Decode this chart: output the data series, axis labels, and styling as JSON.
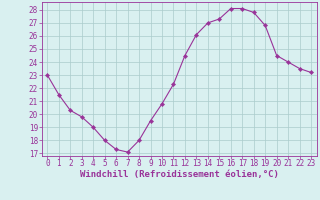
{
  "x": [
    0,
    1,
    2,
    3,
    4,
    5,
    6,
    7,
    8,
    9,
    10,
    11,
    12,
    13,
    14,
    15,
    16,
    17,
    18,
    19,
    20,
    21,
    22,
    23
  ],
  "y": [
    23,
    21.5,
    20.3,
    19.8,
    19.0,
    18.0,
    17.3,
    17.1,
    18.0,
    19.5,
    20.8,
    22.3,
    24.5,
    26.1,
    27.0,
    27.3,
    28.1,
    28.1,
    27.8,
    26.8,
    24.5,
    24.0,
    23.5,
    23.2
  ],
  "line_color": "#993399",
  "marker": "D",
  "marker_size": 2.2,
  "bg_color": "#d9f0f0",
  "grid_color": "#aacccc",
  "xlabel": "Windchill (Refroidissement éolien,°C)",
  "xlabel_color": "#993399",
  "ylim_min": 16.8,
  "ylim_max": 28.6,
  "yticks": [
    17,
    18,
    19,
    20,
    21,
    22,
    23,
    24,
    25,
    26,
    27,
    28
  ],
  "xticks": [
    0,
    1,
    2,
    3,
    4,
    5,
    6,
    7,
    8,
    9,
    10,
    11,
    12,
    13,
    14,
    15,
    16,
    17,
    18,
    19,
    20,
    21,
    22,
    23
  ],
  "tick_color": "#993399",
  "tick_fontsize": 5.5,
  "xlabel_fontsize": 6.5,
  "spine_color": "#993399"
}
